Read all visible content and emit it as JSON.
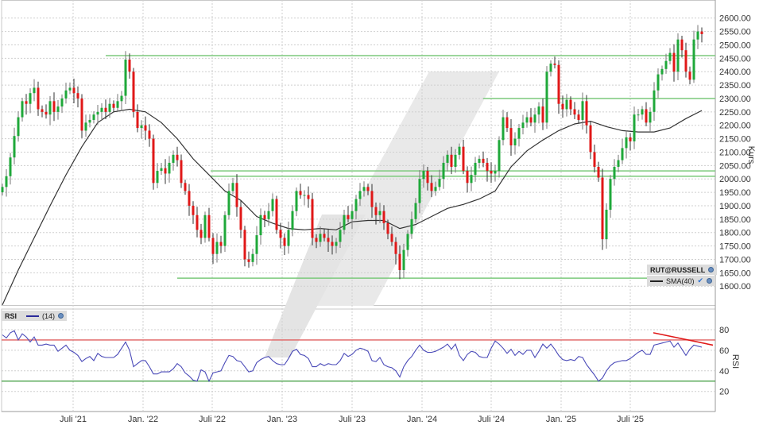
{
  "chart_data": [
    {
      "type": "candlestick",
      "symbol_label": "RUT@RUSSELL",
      "ylabel": "Kurs",
      "ylim": [
        1600,
        2600
      ],
      "yticks": [
        "1600.00",
        "1650.00",
        "1700.00",
        "1750.00",
        "1800.00",
        "1850.00",
        "1900.00",
        "1950.00",
        "2000.00",
        "2050.00",
        "2100.00",
        "2150.00",
        "2200.00",
        "2250.00",
        "2300.00",
        "2350.00",
        "2400.00",
        "2450.00",
        "2500.00",
        "2550.00",
        "2600.00"
      ],
      "xticks": [
        "Juli '21",
        "Jan. '22",
        "Juli '22",
        "Jan. '23",
        "Juli '23",
        "Jan. '24",
        "Juli '24",
        "Jan. '25",
        "Juli '25"
      ],
      "grid": true,
      "colors": {
        "up": "#1fa83a",
        "down": "#e01818",
        "sma": "#333333",
        "levels": "#7cc97c"
      },
      "closes": [
        1970,
        2010,
        2080,
        2160,
        2230,
        2290,
        2280,
        2320,
        2340,
        2260,
        2250,
        2240,
        2290,
        2250,
        2270,
        2300,
        2330,
        2340,
        2320,
        2300,
        2180,
        2210,
        2220,
        2240,
        2250,
        2265,
        2250,
        2280,
        2265,
        2290,
        2310,
        2445,
        2400,
        2250,
        2190,
        2200,
        2180,
        2150,
        1985,
        2030,
        2040,
        2020,
        2060,
        2090,
        2070,
        1985,
        1955,
        1900,
        1865,
        1810,
        1780,
        1865,
        1780,
        1720,
        1765,
        1750,
        1865,
        1955,
        1985,
        1895,
        1810,
        1700,
        1690,
        1720,
        1790,
        1865,
        1850,
        1880,
        1925,
        1810,
        1780,
        1750,
        1810,
        1880,
        1955,
        1940,
        1940,
        1925,
        1780,
        1765,
        1795,
        1780,
        1765,
        1750,
        1765,
        1810,
        1865,
        1850,
        1880,
        1925,
        1955,
        1970,
        1955,
        1895,
        1865,
        1880,
        1835,
        1795,
        1765,
        1720,
        1660,
        1735,
        1795,
        1850,
        1910,
        2000,
        2030,
        1985,
        1955,
        1970,
        2000,
        2060,
        2090,
        2045,
        2090,
        2120,
        2030,
        1985,
        2015,
        2060,
        2075,
        2060,
        2030,
        2020,
        2030,
        2145,
        2230,
        2190,
        2125,
        2150,
        2190,
        2210,
        2230,
        2210,
        2240,
        2270,
        2210,
        2400,
        2430,
        2425,
        2280,
        2260,
        2295,
        2260,
        2240,
        2220,
        2290,
        2200,
        2100,
        2045,
        2005,
        1775,
        1885,
        2000,
        2045,
        2070,
        2115,
        2155,
        2140,
        2240,
        2240,
        2260,
        2210,
        2250,
        2330,
        2390,
        2410,
        2440,
        2470,
        2400,
        2520,
        2480,
        2400,
        2370,
        2520,
        2550,
        2540
      ],
      "sma": {
        "label": "SMA(40)",
        "values": [
          1530,
          1660,
          1780,
          1900,
          2015,
          2120,
          2210,
          2250,
          2260,
          2250,
          2210,
          2150,
          2075,
          2015,
          1955,
          1920,
          1860,
          1835,
          1815,
          1810,
          1815,
          1810,
          1840,
          1845,
          1845,
          1815,
          1830,
          1860,
          1890,
          1905,
          1925,
          1955,
          2045,
          2105,
          2145,
          2180,
          2205,
          2215,
          2195,
          2180,
          2175,
          2175,
          2190,
          2225,
          2255
        ]
      },
      "levels": [
        2460,
        2300,
        2030,
        2010,
        1630
      ]
    },
    {
      "type": "line",
      "title": "RSI",
      "period_label": "(14)",
      "ylabel": "RSI",
      "ylim": [
        20,
        80
      ],
      "yticks": [
        "20",
        "40",
        "60",
        "80"
      ],
      "overbought": 70,
      "oversold": 30,
      "colors": {
        "line": "#4a4ab8",
        "overbought": "#e06060",
        "oversold": "#3a9a3a",
        "trend": "#e01818"
      },
      "trendline": [
        77,
        65
      ],
      "values": [
        75,
        72,
        77,
        79,
        70,
        76,
        73,
        68,
        73,
        65,
        65,
        66,
        65,
        65,
        59,
        62,
        65,
        60,
        58,
        55,
        49,
        52,
        54,
        50,
        57,
        54,
        53,
        53,
        53,
        56,
        62,
        68,
        60,
        44,
        47,
        50,
        50,
        44,
        37,
        37,
        39,
        39,
        39,
        42,
        47,
        44,
        38,
        35,
        31,
        30,
        41,
        39,
        30,
        38,
        39,
        40,
        48,
        55,
        54,
        50,
        49,
        44,
        39,
        40,
        48,
        51,
        53,
        54,
        50,
        47,
        46,
        46,
        52,
        59,
        61,
        56,
        55,
        52,
        44,
        44,
        47,
        45,
        47,
        46,
        46,
        50,
        57,
        54,
        56,
        60,
        62,
        61,
        59,
        50,
        49,
        53,
        46,
        44,
        43,
        40,
        34,
        44,
        50,
        54,
        60,
        65,
        60,
        58,
        58,
        59,
        61,
        63,
        66,
        61,
        66,
        55,
        50,
        56,
        59,
        58,
        54,
        53,
        53,
        62,
        69,
        66,
        62,
        57,
        61,
        55,
        59,
        56,
        60,
        60,
        53,
        59,
        66,
        62,
        66,
        61,
        55,
        51,
        50,
        51,
        50,
        54,
        53,
        46,
        41,
        36,
        30,
        33,
        40,
        45,
        48,
        49,
        50,
        50,
        52,
        55,
        58,
        60,
        56,
        56,
        65,
        66,
        67,
        68,
        69,
        63,
        67,
        61,
        55,
        61,
        65,
        64,
        63
      ]
    }
  ]
}
